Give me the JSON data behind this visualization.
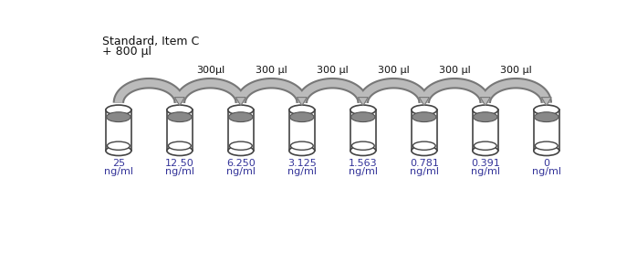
{
  "background_color": "#ffffff",
  "title_line1": "Standard, Item C",
  "title_line2": "+ 800 μl",
  "volume_labels": [
    "300μl",
    "300 μl",
    "300 μl",
    "300 μl",
    "300 μl",
    "300 μl"
  ],
  "n_tubes": 8,
  "tube_color_outline": "#444444",
  "ellipse_fill": "#888888",
  "ellipse_outline": "#555555",
  "arrow_fill": "#bbbbbb",
  "arrow_edge": "#777777",
  "text_color": "#333399",
  "label_fontsize": 8.0,
  "vol_fontsize": 8.0,
  "title_fontsize": 9.0,
  "tube_labels": [
    "25",
    "12.50",
    "6.250",
    "3.125",
    "1.563",
    "0.781",
    "0.391",
    "0"
  ]
}
